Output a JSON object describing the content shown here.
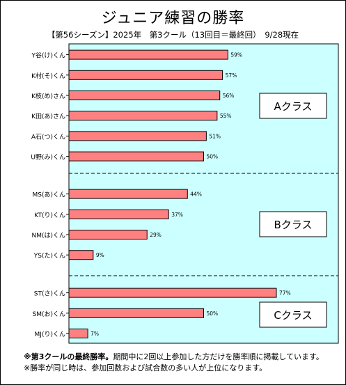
{
  "title": "ジュニア練習の勝率",
  "subtitle": "【第56シーズン】2025年　第3クール（13回目＝最終回）　9/28現在",
  "notes": {
    "line1_bold": "※第3クールの最終勝率。",
    "line1_rest": "期間中に2回以上参加した方だけを勝率順に掲載しています。",
    "line2": "※勝率が同じ時は、参加回数および試合数の多い人が上位になります。"
  },
  "colors": {
    "plot_bg": "#ccffff",
    "bar": "#ff8080",
    "bar_stroke": "#000000"
  },
  "chart_data": {
    "type": "bar",
    "orientation": "horizontal",
    "xlim": [
      0,
      100
    ],
    "value_suffix": "%",
    "groups": [
      {
        "label": "Aクラス",
        "categories": [
          "Y谷(け)くん",
          "K村(そ)くん",
          "K枝(め)さん",
          "K田(あ)さん",
          "A石(つ)くん",
          "U野(み)くん"
        ],
        "values": [
          59,
          57,
          56,
          55,
          51,
          50
        ]
      },
      {
        "label": "Bクラス",
        "categories": [
          "MS(あ)くん",
          "KT(り)くん",
          "NM(は)くん",
          "YS(た)くん"
        ],
        "values": [
          44,
          37,
          29,
          9
        ]
      },
      {
        "label": "Cクラス",
        "categories": [
          "ST(さ)くん",
          "SM(お)くん",
          "MJ(り)くん"
        ],
        "values": [
          77,
          50,
          7
        ]
      }
    ]
  }
}
